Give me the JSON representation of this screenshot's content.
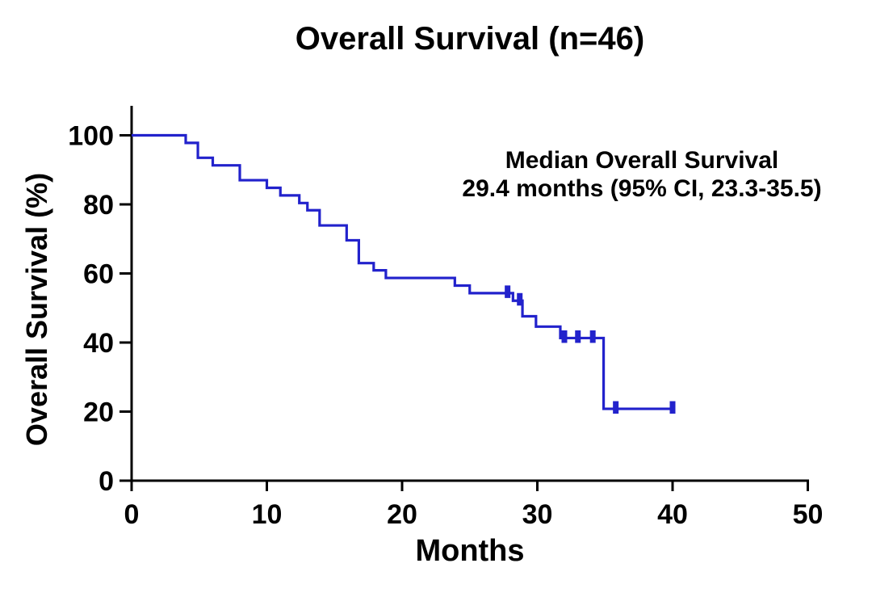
{
  "chart_data": {
    "type": "line",
    "subtype": "kaplan-meier-step-curve",
    "title": "Overall Survival (n=46)",
    "xlabel": "Months",
    "ylabel": "Overall Survival (%)",
    "xlim": [
      0,
      50
    ],
    "ylim": [
      0,
      100
    ],
    "x_ticks": [
      0,
      10,
      20,
      30,
      40,
      50
    ],
    "y_ticks": [
      0,
      20,
      40,
      60,
      80,
      100
    ],
    "grid": false,
    "legend": "none",
    "annotation": {
      "line1": "Median Overall Survival",
      "line2": "29.4 months (95% CI, 23.3-35.5)"
    },
    "colors": {
      "curve": "#2222CC",
      "axis": "#000000",
      "text": "#000000",
      "background": "#FFFFFF"
    },
    "series": [
      {
        "name": "Overall Survival",
        "steps": [
          [
            0,
            100
          ],
          [
            4,
            97.8
          ],
          [
            4.9,
            93.5
          ],
          [
            6,
            91.3
          ],
          [
            8,
            87.0
          ],
          [
            10,
            84.8
          ],
          [
            11,
            82.6
          ],
          [
            12.4,
            80.4
          ],
          [
            13,
            78.3
          ],
          [
            13.9,
            73.9
          ],
          [
            15.9,
            69.6
          ],
          [
            16.8,
            63.0
          ],
          [
            17.9,
            60.9
          ],
          [
            18.8,
            58.7
          ],
          [
            23.9,
            56.5
          ],
          [
            25,
            54.3
          ],
          [
            28.2,
            52.1
          ],
          [
            28.9,
            47.6
          ],
          [
            29.9,
            44.6
          ],
          [
            31.7,
            41.3
          ],
          [
            34.9,
            20.8
          ]
        ],
        "end_x": 40,
        "censor_marks": [
          [
            27.8,
            54.3
          ],
          [
            28.7,
            52.1
          ],
          [
            32.0,
            41.3
          ],
          [
            33.0,
            41.3
          ],
          [
            34.1,
            41.3
          ],
          [
            35.8,
            20.8
          ],
          [
            40,
            20.8
          ]
        ]
      }
    ]
  }
}
